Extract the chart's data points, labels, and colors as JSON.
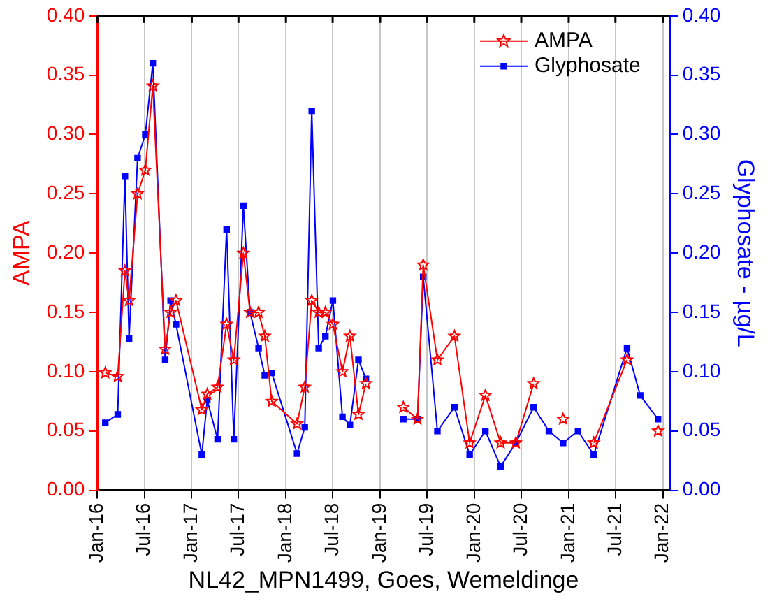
{
  "chart_data": {
    "type": "line",
    "xlabel": "NL42_MPN1499, Goes, Wemeldinge",
    "ylabel": "AMPA",
    "y2label": "Glyphosate - µg/L",
    "x": [
      "2016-02-01",
      "2016-03-20",
      "2016-04-17",
      "2016-05-03",
      "2016-06-05",
      "2016-07-05",
      "2016-08-03",
      "2016-09-20",
      "2016-10-11",
      "2016-11-01",
      "2017-02-09",
      "2017-03-02",
      "2017-04-11",
      "2017-05-16",
      "2017-06-13",
      "2017-07-20",
      "2017-08-15",
      "2017-09-17",
      "2017-10-11",
      "2017-11-07",
      "2018-02-13",
      "2018-03-15",
      "2018-04-11",
      "2018-05-08",
      "2018-06-03",
      "2018-07-02",
      "2018-08-08",
      "2018-09-06",
      "2018-10-09",
      "2018-11-07",
      "2019-01-15",
      "2019-04-01",
      "2019-05-26",
      "2019-06-17",
      "2019-08-11",
      "2019-10-16",
      "2019-12-14",
      "2020-02-13",
      "2020-04-12",
      "2020-06-10",
      "2020-08-18",
      "2020-10-16",
      "2020-12-10",
      "2021-02-06",
      "2021-04-08",
      "2021-08-15",
      "2021-10-05",
      "2021-12-13"
    ],
    "series": [
      {
        "name": "AMPA",
        "color": "#ff0000",
        "marker": "star",
        "values": [
          0.099,
          0.096,
          0.185,
          0.16,
          0.25,
          0.27,
          0.341,
          0.119,
          0.15,
          0.16,
          0.068,
          0.081,
          0.087,
          0.14,
          0.11,
          0.2,
          0.15,
          0.15,
          0.13,
          0.075,
          0.056,
          0.087,
          0.16,
          0.15,
          0.15,
          0.14,
          0.1,
          0.13,
          0.064,
          0.09,
          null,
          0.07,
          0.06,
          0.19,
          0.11,
          0.13,
          0.04,
          0.08,
          0.04,
          0.04,
          0.09,
          null,
          0.06,
          null,
          0.04,
          0.11,
          null,
          0.05
        ]
      },
      {
        "name": "Glyphosate",
        "color": "#0000ff",
        "marker": "square",
        "axis": "y2",
        "values": [
          0.057,
          0.064,
          0.265,
          0.128,
          0.28,
          0.3,
          0.36,
          0.11,
          0.16,
          0.14,
          0.03,
          0.076,
          0.043,
          0.22,
          0.043,
          0.24,
          0.15,
          0.12,
          0.097,
          0.099,
          0.031,
          0.053,
          0.32,
          0.12,
          0.13,
          0.16,
          0.062,
          0.055,
          0.11,
          0.094,
          null,
          0.06,
          0.06,
          0.18,
          0.05,
          0.07,
          0.03,
          0.05,
          0.02,
          0.04,
          0.07,
          0.05,
          0.04,
          0.05,
          0.03,
          0.12,
          0.08,
          0.06
        ]
      }
    ],
    "xlim": [
      "2016-01-01",
      "2022-01-28"
    ],
    "xticks": [
      {
        "value": "2016-01-01",
        "label": "Jan-16"
      },
      {
        "value": "2016-07-01",
        "label": "Jul-16"
      },
      {
        "value": "2017-01-01",
        "label": "Jan-17"
      },
      {
        "value": "2017-07-01",
        "label": "Jul-17"
      },
      {
        "value": "2018-01-01",
        "label": "Jan-18"
      },
      {
        "value": "2018-07-01",
        "label": "Jul-18"
      },
      {
        "value": "2019-01-01",
        "label": "Jan-19"
      },
      {
        "value": "2019-07-01",
        "label": "Jul-19"
      },
      {
        "value": "2020-01-01",
        "label": "Jan-20"
      },
      {
        "value": "2020-07-01",
        "label": "Jul-20"
      },
      {
        "value": "2021-01-01",
        "label": "Jan-21"
      },
      {
        "value": "2021-07-01",
        "label": "Jul-21"
      },
      {
        "value": "2022-01-01",
        "label": "Jan-22"
      }
    ],
    "ylim": [
      0,
      0.4
    ],
    "yticks": [
      {
        "value": 0,
        "label": "0.00"
      },
      {
        "value": 0.05,
        "label": "0.05"
      },
      {
        "value": 0.1,
        "label": "0.10"
      },
      {
        "value": 0.15,
        "label": "0.15"
      },
      {
        "value": 0.2,
        "label": "0.20"
      },
      {
        "value": 0.25,
        "label": "0.25"
      },
      {
        "value": 0.3,
        "label": "0.30"
      },
      {
        "value": 0.35,
        "label": "0.35"
      },
      {
        "value": 0.4,
        "label": "0.40"
      }
    ],
    "y2lim": [
      0,
      0.4
    ],
    "y2ticks": [
      {
        "value": 0,
        "label": "0.00"
      },
      {
        "value": 0.05,
        "label": "0.05"
      },
      {
        "value": 0.1,
        "label": "0.10"
      },
      {
        "value": 0.15,
        "label": "0.15"
      },
      {
        "value": 0.2,
        "label": "0.20"
      },
      {
        "value": 0.25,
        "label": "0.25"
      },
      {
        "value": 0.3,
        "label": "0.30"
      },
      {
        "value": 0.35,
        "label": "0.35"
      },
      {
        "value": 0.4,
        "label": "0.40"
      }
    ],
    "grid": "x",
    "legend": "top right",
    "line_style": "solid"
  }
}
